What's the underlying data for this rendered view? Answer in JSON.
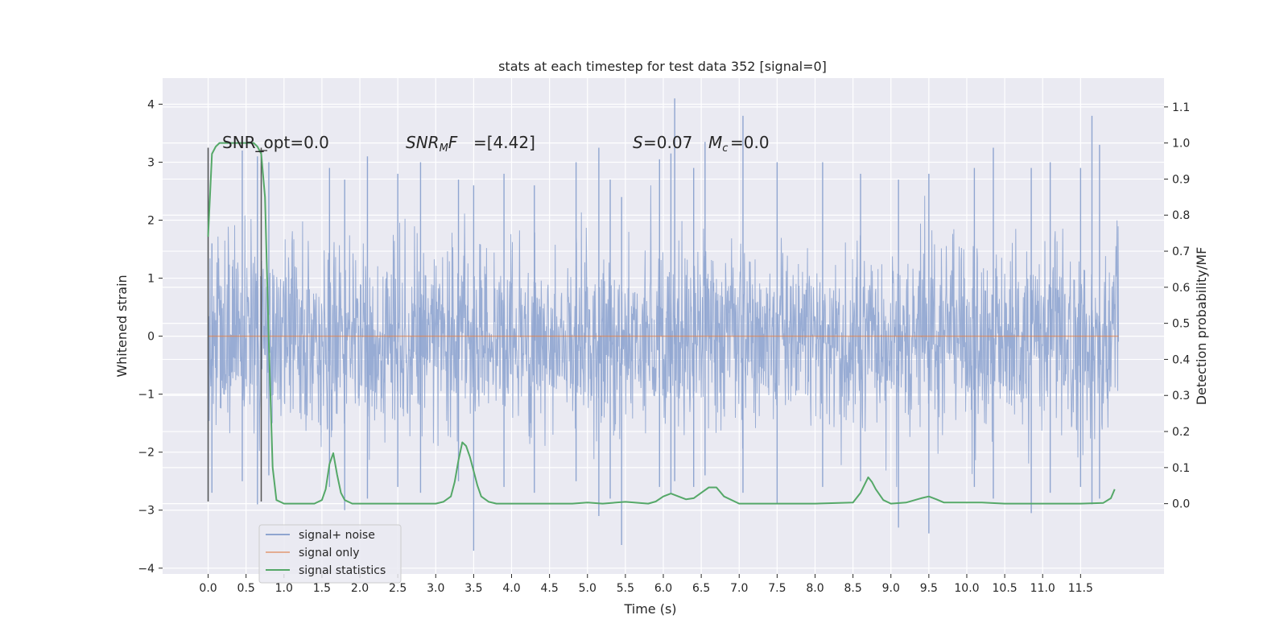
{
  "chart_data": {
    "type": "line",
    "title": "stats at each timestep for test data 352 [signal=0]",
    "xlabel": "Time (s)",
    "ylabel": "Whitened strain",
    "ylabel_right": "Detection probability/MF",
    "xlim": [
      -0.6,
      12.6
    ],
    "ylim": [
      -4.1,
      4.45
    ],
    "ylim_right": [
      -0.195,
      1.18
    ],
    "x_ticks": [
      "0.0",
      "0.5",
      "1.0",
      "1.5",
      "2.0",
      "2.5",
      "3.0",
      "3.5",
      "4.0",
      "4.5",
      "5.0",
      "5.5",
      "6.0",
      "6.5",
      "7.0",
      "7.5",
      "8.0",
      "8.5",
      "9.0",
      "9.5",
      "10.0",
      "10.5",
      "11.0",
      "11.5"
    ],
    "y_ticks": [
      "4",
      "3",
      "2",
      "1",
      "0",
      "−1",
      "−2",
      "−3",
      "−4"
    ],
    "y_ticks_right": [
      "1.1",
      "1.0",
      "0.9",
      "0.8",
      "0.7",
      "0.6",
      "0.5",
      "0.4",
      "0.3",
      "0.2",
      "0.1",
      "0.0"
    ],
    "annotations": {
      "snr_opt": "SNR_opt=0.0",
      "snr_mf": "=[4.42]",
      "s_val": "=0.07",
      "mc_val": "=0.0"
    },
    "vlines": [
      0.0,
      0.7
    ],
    "legend": {
      "position": "lower-left",
      "entries": [
        "signal+ noise",
        "signal only",
        "signal statistics"
      ]
    },
    "colors": {
      "noise": "#8fa5d0",
      "signal_only": "#dd8452",
      "statistics": "#55a868",
      "background": "#eaeaf2",
      "grid": "#ffffff",
      "vline": "#555555"
    },
    "series": [
      {
        "name": "signal+ noise",
        "axis": "left",
        "peaks": [
          [
            0.0,
            3.25,
            -2.85
          ],
          [
            0.05,
            1.6,
            -2.7
          ],
          [
            0.45,
            3.2,
            -2.5
          ],
          [
            0.65,
            3.1,
            -2.9
          ],
          [
            0.8,
            3.0,
            -2.4
          ],
          [
            1.6,
            2.9,
            -2.6
          ],
          [
            1.8,
            2.7,
            -3.0
          ],
          [
            2.1,
            3.1,
            -2.8
          ],
          [
            2.5,
            2.8,
            -2.6
          ],
          [
            2.8,
            3.0,
            -2.7
          ],
          [
            3.3,
            2.7,
            -2.5
          ],
          [
            3.5,
            2.6,
            -3.7
          ],
          [
            3.9,
            2.8,
            -2.6
          ],
          [
            4.3,
            2.6,
            -2.7
          ],
          [
            4.85,
            3.0,
            -2.5
          ],
          [
            5.15,
            3.25,
            -3.1
          ],
          [
            5.3,
            2.7,
            -2.8
          ],
          [
            5.45,
            2.4,
            -3.6
          ],
          [
            5.95,
            3.05,
            -2.6
          ],
          [
            6.1,
            3.15,
            -2.7
          ],
          [
            6.15,
            4.1,
            -2.5
          ],
          [
            6.4,
            2.9,
            -2.6
          ],
          [
            6.55,
            3.35,
            -2.4
          ],
          [
            7.05,
            3.8,
            -2.7
          ],
          [
            7.5,
            3.0,
            -2.9
          ],
          [
            8.1,
            3.0,
            -2.6
          ],
          [
            8.6,
            2.8,
            -2.5
          ],
          [
            9.1,
            2.7,
            -3.3
          ],
          [
            9.5,
            2.8,
            -3.4
          ],
          [
            10.1,
            2.9,
            -2.6
          ],
          [
            10.35,
            3.25,
            -2.8
          ],
          [
            10.85,
            2.9,
            -3.05
          ],
          [
            11.1,
            3.0,
            -2.7
          ],
          [
            11.5,
            2.9,
            -2.6
          ],
          [
            11.65,
            3.8,
            -2.9
          ],
          [
            11.75,
            3.3,
            -2.8
          ]
        ]
      },
      {
        "name": "signal only",
        "axis": "left",
        "x": [
          0.0,
          12.0
        ],
        "values": [
          0.0,
          0.0
        ]
      },
      {
        "name": "signal statistics",
        "axis": "right",
        "x": [
          0.0,
          0.05,
          0.1,
          0.15,
          0.2,
          0.3,
          0.4,
          0.5,
          0.6,
          0.65,
          0.7,
          0.75,
          0.8,
          0.85,
          0.9,
          1.0,
          1.2,
          1.4,
          1.5,
          1.55,
          1.6,
          1.65,
          1.7,
          1.75,
          1.8,
          1.9,
          2.0,
          2.5,
          3.0,
          3.1,
          3.2,
          3.25,
          3.3,
          3.35,
          3.4,
          3.45,
          3.5,
          3.55,
          3.6,
          3.7,
          3.8,
          4.0,
          4.5,
          4.8,
          5.0,
          5.2,
          5.5,
          5.8,
          5.9,
          6.0,
          6.1,
          6.2,
          6.3,
          6.4,
          6.5,
          6.6,
          6.7,
          6.8,
          7.0,
          8.0,
          8.5,
          8.6,
          8.7,
          8.75,
          8.8,
          8.9,
          9.0,
          9.2,
          9.4,
          9.5,
          9.6,
          9.7,
          10.0,
          10.2,
          10.5,
          11.0,
          11.5,
          11.8,
          11.9,
          11.95
        ],
        "values": [
          0.74,
          0.97,
          0.99,
          1.0,
          1.0,
          1.0,
          1.0,
          1.0,
          1.0,
          0.99,
          0.97,
          0.85,
          0.45,
          0.1,
          0.01,
          0.0,
          0.0,
          0.0,
          0.01,
          0.04,
          0.11,
          0.14,
          0.08,
          0.03,
          0.01,
          0.0,
          0.0,
          0.0,
          0.0,
          0.005,
          0.02,
          0.06,
          0.12,
          0.17,
          0.16,
          0.13,
          0.09,
          0.05,
          0.02,
          0.005,
          0.0,
          0.0,
          0.0,
          0.0,
          0.003,
          0.0,
          0.005,
          0.0,
          0.006,
          0.02,
          0.028,
          0.02,
          0.012,
          0.015,
          0.03,
          0.045,
          0.045,
          0.02,
          0.0,
          0.0,
          0.003,
          0.03,
          0.073,
          0.06,
          0.04,
          0.01,
          0.0,
          0.003,
          0.015,
          0.02,
          0.012,
          0.003,
          0.003,
          0.003,
          0.0,
          0.0,
          0.0,
          0.002,
          0.015,
          0.04
        ]
      }
    ]
  }
}
